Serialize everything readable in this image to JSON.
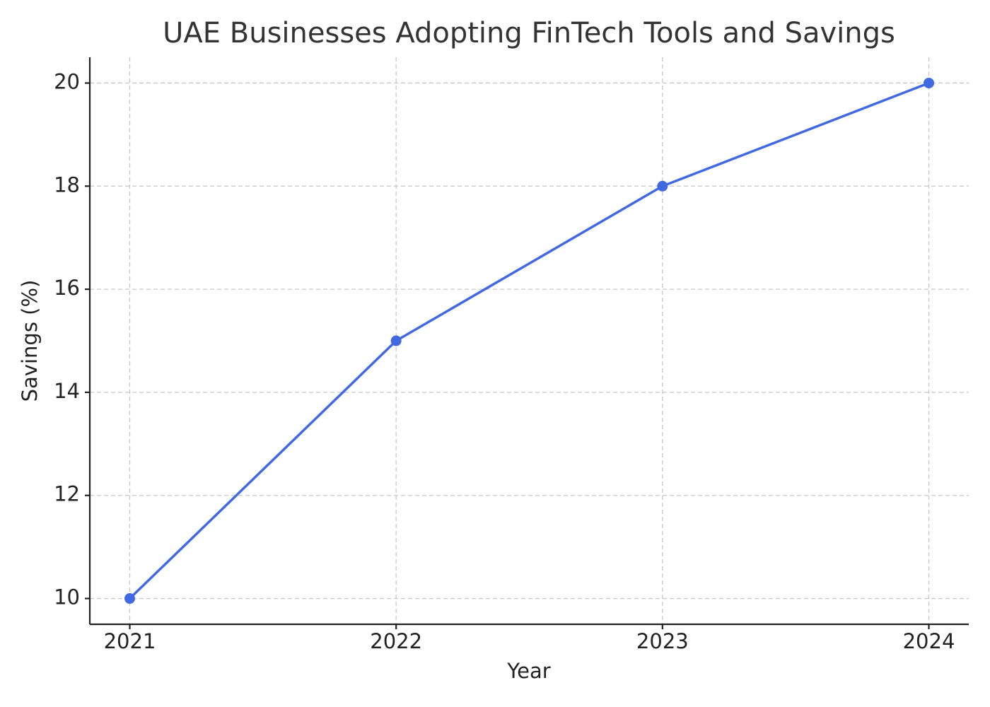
{
  "chart_data": {
    "type": "line",
    "title": "UAE Businesses Adopting FinTech Tools and Savings",
    "x_label": "Year",
    "y_label": "Savings (%)",
    "x": [
      2021,
      2022,
      2023,
      2024
    ],
    "series": [
      {
        "name": "Savings",
        "color": "#4169e1",
        "values": [
          10,
          15,
          18,
          20
        ]
      }
    ],
    "xlim": [
      2020.85,
      2024.15
    ],
    "xticks": [
      2021,
      2022,
      2023,
      2024
    ],
    "ylim": [
      9.5,
      20.5
    ],
    "yticks": [
      10,
      12,
      14,
      16,
      18,
      20
    ],
    "grid": true,
    "marker": "circle"
  }
}
